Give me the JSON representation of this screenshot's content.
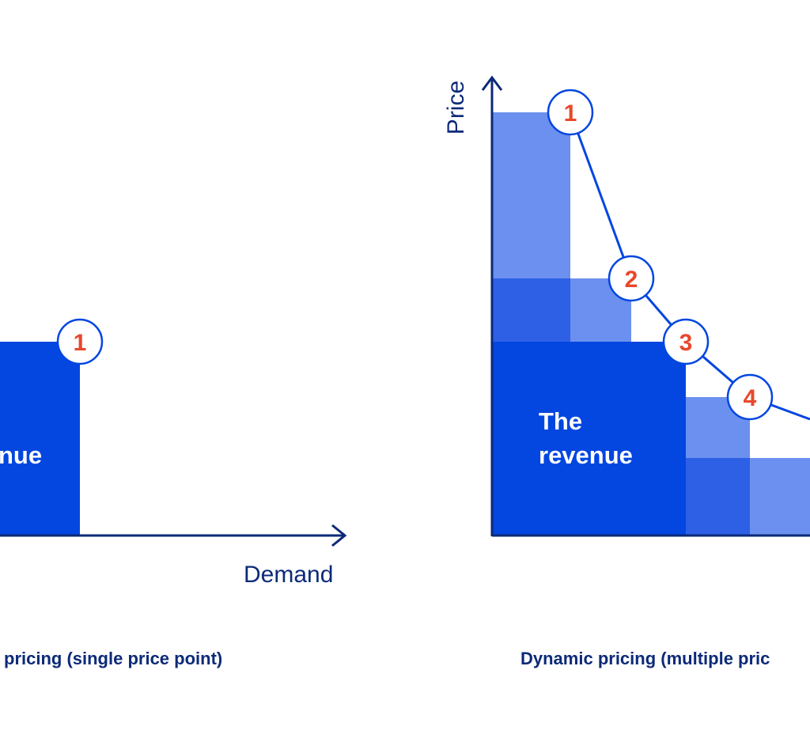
{
  "colors": {
    "dark_blue": "#0346e0",
    "mid_blue": "#2e60e6",
    "light_blue": "#6c90ef",
    "axis": "#0c2a78",
    "number": "#e8482b"
  },
  "left_panel": {
    "revenue_label": "nue",
    "x_axis_label": "Demand",
    "caption": "pricing (single price point)",
    "points": [
      {
        "label": "1"
      }
    ]
  },
  "right_panel": {
    "y_axis_label": "Price",
    "revenue_label_line1": "The",
    "revenue_label_line2": "revenue",
    "caption": "Dynamic pricing (multiple pric",
    "points": [
      {
        "label": "1"
      },
      {
        "label": "2"
      },
      {
        "label": "3"
      },
      {
        "label": "4"
      }
    ]
  }
}
